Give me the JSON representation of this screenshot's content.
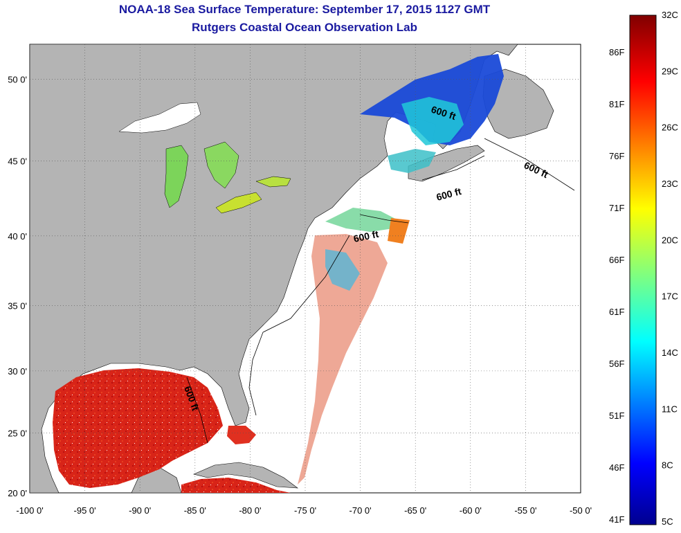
{
  "title": {
    "line1": "NOAA-18 Sea Surface Temperature:  September 17, 2015 1127 GMT",
    "line2": "Rutgers Coastal Ocean Observation Lab"
  },
  "colors": {
    "title": "#1a1aa0",
    "land": "#b4b4b4",
    "water_no_data": "#ffffff",
    "warm": "#d42020",
    "cool": "#1030c0"
  },
  "map": {
    "lon_range": [
      -100,
      -50
    ],
    "lat_range": [
      20,
      52
    ],
    "lon_ticks": [
      "-100 0'",
      "-95 0'",
      "-90 0'",
      "-85 0'",
      "-80 0'",
      "-75 0'",
      "-70 0'",
      "-65 0'",
      "-60 0'",
      "-55 0'",
      "-50 0'"
    ],
    "lat_ticks": [
      "20 0'",
      "25 0'",
      "30 0'",
      "35 0'",
      "40 0'",
      "45 0'",
      "50 0'"
    ],
    "grid": "dotted",
    "contour_labels": [
      "600 ft",
      "600 ft",
      "600 ft",
      "600 ft",
      "600 ft"
    ]
  },
  "colorbar": {
    "celsius_labels": [
      "32C",
      "29C",
      "26C",
      "23C",
      "20C",
      "17C",
      "14C",
      "11C",
      "8C",
      "5C"
    ],
    "fahrenheit_labels": [
      "86F",
      "81F",
      "76F",
      "71F",
      "66F",
      "61F",
      "56F",
      "51F",
      "46F",
      "41F"
    ],
    "range_c": [
      5,
      32
    ],
    "colormap": "jet"
  }
}
